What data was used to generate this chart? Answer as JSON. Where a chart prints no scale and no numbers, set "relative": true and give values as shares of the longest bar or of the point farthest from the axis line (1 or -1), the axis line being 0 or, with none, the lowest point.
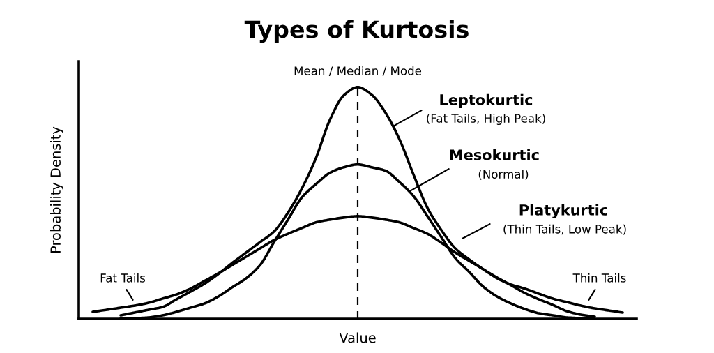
{
  "chart_data": {
    "type": "line",
    "title": "Types of Kurtosis",
    "xlabel": "Value",
    "ylabel": "Probability Density",
    "relative": true,
    "marker": "none",
    "line_style": "solid",
    "categories": [
      null,
      null,
      null,
      null,
      null,
      null,
      null,
      null,
      null,
      null,
      null,
      null,
      null,
      null,
      null,
      null,
      null,
      null,
      null,
      null,
      null,
      null,
      null,
      null,
      null,
      null,
      null,
      null,
      null,
      null,
      null,
      null,
      null,
      null,
      null,
      null,
      null,
      null,
      null,
      null,
      null
    ],
    "series": [
      {
        "color": "#000000",
        "values": [
          null,
          null,
          null,
          0.015,
          0.027,
          0.039,
          0.051,
          0.084,
          0.117,
          0.151,
          0.193,
          0.241,
          0.286,
          0.331,
          0.377,
          0.458,
          0.563,
          0.693,
          0.858,
          0.964,
          1,
          0.967,
          0.889,
          0.774,
          0.623,
          0.479,
          0.383,
          0.304,
          0.256,
          0.214,
          0.178,
          0.145,
          0.111,
          0.084,
          0.06,
          0.033,
          0.018,
          0.009,
          null,
          null,
          null
        ]
      },
      {
        "color": "#000000",
        "values": [
          null,
          null,
          null,
          0.003,
          0.003,
          0.006,
          0.015,
          0.03,
          0.048,
          0.066,
          0.096,
          0.136,
          0.175,
          0.232,
          0.331,
          0.428,
          0.524,
          0.581,
          0.63,
          0.654,
          0.666,
          0.654,
          0.639,
          0.59,
          0.53,
          0.443,
          0.352,
          0.262,
          0.202,
          0.139,
          0.096,
          0.066,
          0.042,
          0.024,
          0.015,
          0.006,
          0.003,
          0,
          null,
          null,
          null
        ]
      },
      {
        "color": "#000000",
        "values": [
          null,
          0.03,
          0.039,
          0.048,
          0.057,
          0.069,
          0.087,
          0.105,
          0.13,
          0.163,
          0.196,
          0.232,
          0.268,
          0.304,
          0.34,
          0.367,
          0.392,
          0.416,
          0.428,
          0.437,
          0.443,
          0.437,
          0.428,
          0.416,
          0.392,
          0.367,
          0.328,
          0.286,
          0.25,
          0.214,
          0.175,
          0.148,
          0.13,
          0.108,
          0.087,
          0.072,
          0.057,
          0.045,
          0.036,
          0.027,
          null
        ]
      }
    ],
    "annotations": [
      "Mean / Median / Mode",
      "Leptokurtic",
      "(Fat Tails, High Peak)",
      "Mesokurtic",
      "(Normal)",
      "Platykurtic",
      "(Thin Tails, Low Peak)",
      "Fat Tails",
      "Thin Tails"
    ]
  }
}
